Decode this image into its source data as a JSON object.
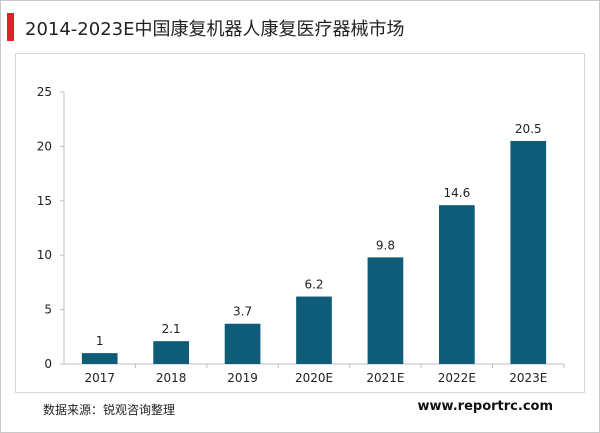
{
  "header": {
    "title": "2014-2023E中国康复机器人康复医疗器械市场"
  },
  "footer": {
    "source": "数据来源：锐观咨询整理",
    "website": "www.reportrc.com"
  },
  "colors": {
    "accent": "#e41e26",
    "bar": "#0e5c78",
    "axis": "#bfbfbf",
    "text": "#222222"
  },
  "chart_data": {
    "type": "bar",
    "categories": [
      "2017",
      "2018",
      "2019",
      "2020E",
      "2021E",
      "2022E",
      "2023E"
    ],
    "values": [
      1,
      2.1,
      3.7,
      6.2,
      9.8,
      14.6,
      20.5
    ],
    "data_labels": [
      "1",
      "2.1",
      "3.7",
      "6.2",
      "9.8",
      "14.6",
      "20.5"
    ],
    "yticks": [
      0,
      5,
      10,
      15,
      20,
      25
    ],
    "ylim": [
      0,
      25
    ],
    "title": "2014-2023E中国康复机器人康复医疗器械市场",
    "xlabel": "",
    "ylabel": "",
    "grid": false,
    "legend": "none"
  }
}
